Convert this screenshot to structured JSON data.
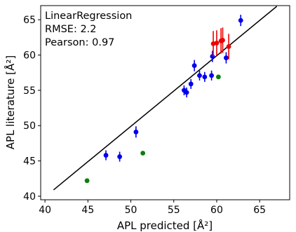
{
  "chart_data": {
    "type": "scatter",
    "xlabel": "APL predicted [Å²]",
    "ylabel": "APL literature [Å²]",
    "xlim": [
      39.5,
      68.5
    ],
    "ylim": [
      39.5,
      67.0
    ],
    "xticks": [
      40,
      45,
      50,
      55,
      60,
      65
    ],
    "yticks": [
      40,
      45,
      50,
      55,
      60,
      65
    ],
    "grid": false,
    "annotations": [
      "LinearRegression",
      "RMSE: 2.2",
      "Pearson: 0.97"
    ],
    "reference_line": {
      "x": [
        41.0,
        67.0
      ],
      "y": [
        40.9,
        66.9
      ],
      "color": "#000000"
    },
    "series": [
      {
        "color": "#0000ee",
        "points": [
          {
            "x": 47.1,
            "y": 45.8,
            "err": 0.7
          },
          {
            "x": 48.7,
            "y": 45.6,
            "err": 0.7
          },
          {
            "x": 50.6,
            "y": 49.1,
            "err": 0.8
          },
          {
            "x": 56.2,
            "y": 55.0,
            "err": 0.7
          },
          {
            "x": 56.5,
            "y": 54.7,
            "err": 0.7
          },
          {
            "x": 57.0,
            "y": 55.9,
            "err": 0.7
          },
          {
            "x": 57.4,
            "y": 58.5,
            "err": 0.8
          },
          {
            "x": 58.0,
            "y": 57.1,
            "err": 0.7
          },
          {
            "x": 58.6,
            "y": 56.9,
            "err": 0.7
          },
          {
            "x": 59.4,
            "y": 57.1,
            "err": 0.7
          },
          {
            "x": 59.5,
            "y": 59.8,
            "err": 0.8
          },
          {
            "x": 61.1,
            "y": 59.6,
            "err": 0.8
          },
          {
            "x": 62.8,
            "y": 64.9,
            "err": 0.8
          }
        ]
      },
      {
        "color": "#ee0000",
        "points": [
          {
            "x": 59.6,
            "y": 61.6,
            "err": 1.8
          },
          {
            "x": 60.0,
            "y": 61.7,
            "err": 1.8
          },
          {
            "x": 60.5,
            "y": 62.0,
            "err": 1.8
          },
          {
            "x": 60.7,
            "y": 62.1,
            "err": 1.8
          },
          {
            "x": 61.4,
            "y": 61.2,
            "err": 1.8
          }
        ]
      },
      {
        "color": "#0a7f0a",
        "points": [
          {
            "x": 44.9,
            "y": 42.2,
            "err": 0
          },
          {
            "x": 51.4,
            "y": 46.1,
            "err": 0
          },
          {
            "x": 60.2,
            "y": 56.9,
            "err": 0
          }
        ]
      }
    ]
  }
}
